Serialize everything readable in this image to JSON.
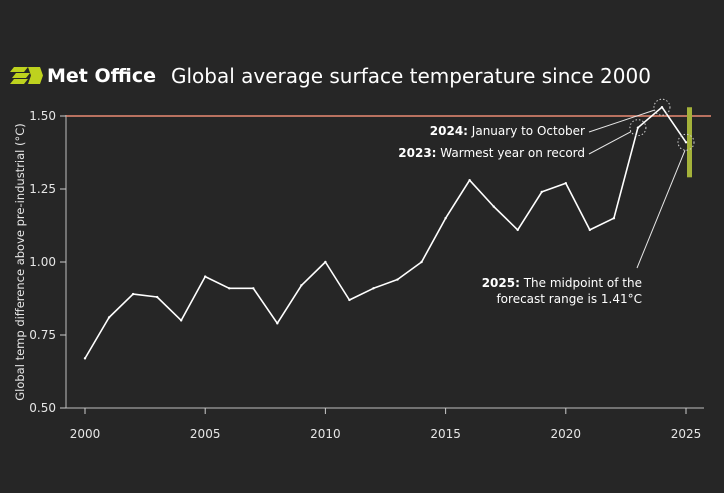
{
  "header": {
    "logo_text": "Met Office",
    "title": "Global average surface temperature since 2000"
  },
  "chart_data": {
    "type": "line",
    "title": "Global average surface temperature since 2000",
    "xlabel": "",
    "ylabel": "Global temp difference above pre-industrial (°C)",
    "x": [
      2000,
      2001,
      2002,
      2003,
      2004,
      2005,
      2006,
      2007,
      2008,
      2009,
      2010,
      2011,
      2012,
      2013,
      2014,
      2015,
      2016,
      2017,
      2018,
      2019,
      2020,
      2021,
      2022,
      2023,
      2024,
      2025
    ],
    "series": [
      {
        "values": [
          0.67,
          0.81,
          0.89,
          0.88,
          0.8,
          0.95,
          0.91,
          0.91,
          0.79,
          0.92,
          1.0,
          0.87,
          0.91,
          0.94,
          1.0,
          1.15,
          1.28,
          1.19,
          1.11,
          1.24,
          1.27,
          1.11,
          1.15,
          1.46,
          1.53,
          1.41
        ]
      }
    ],
    "xlim": [
      2000,
      2025
    ],
    "ylim": [
      0.5,
      1.5
    ],
    "xticks": [
      2000,
      2005,
      2010,
      2015,
      2020,
      2025
    ],
    "yticks": [
      0.5,
      0.75,
      1.0,
      1.25,
      1.5
    ],
    "xtick_labels": [
      "2000",
      "2005",
      "2010",
      "2015",
      "2020",
      "2025"
    ],
    "ytick_labels": [
      "0.50",
      "0.75",
      "1.00",
      "1.25",
      "1.50"
    ],
    "threshold_line": {
      "value": 1.5
    },
    "forecast_range": {
      "year": 2025,
      "low": 1.29,
      "high": 1.53,
      "midpoint": 1.41
    },
    "highlighted_points": [
      2023,
      2024,
      2025
    ],
    "grid": false,
    "colors": {
      "background": "#262626",
      "line": "#ffffff",
      "threshold": "#e88a72",
      "forecast_bar": "#a4b23a",
      "axis": "#cccccc",
      "logo_green": "#bed21e"
    },
    "annotations": [
      {
        "year": 2024,
        "bold": "2024:",
        "text": " January to October"
      },
      {
        "year": 2023,
        "bold": "2023:",
        "text": " Warmest year on record"
      },
      {
        "year": 2025,
        "bold": "2025:",
        "text": " The midpoint of the",
        "line2": "forecast range is 1.41°C"
      }
    ]
  }
}
